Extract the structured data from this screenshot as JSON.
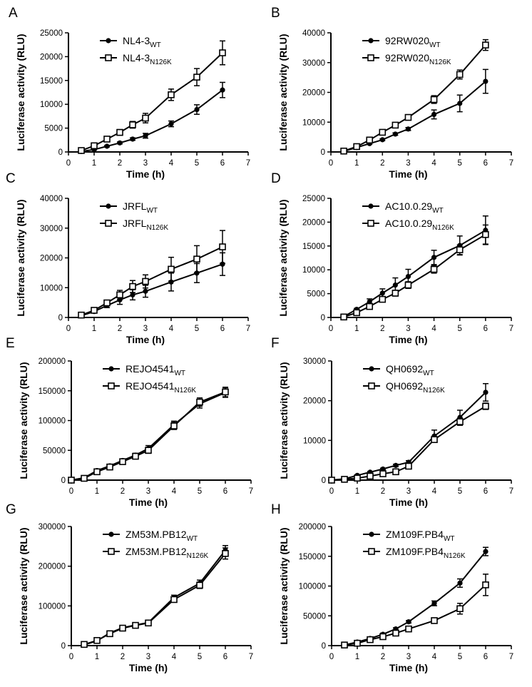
{
  "figure": {
    "x_title": "Time (h)",
    "y_title": "Luciferase activity (RLU)"
  },
  "chart_data": [
    {
      "type": "line",
      "panel": "A",
      "x": [
        0.5,
        1,
        1.5,
        2,
        2.5,
        3,
        4,
        5,
        6
      ],
      "xlim": [
        0,
        7
      ],
      "xticks": [
        0,
        1,
        2,
        3,
        4,
        5,
        6,
        7
      ],
      "ylim": [
        0,
        25000
      ],
      "yticks": [
        0,
        5000,
        10000,
        15000,
        20000,
        25000
      ],
      "xlabel": "Time (h)",
      "ylabel": "Luciferase activity (RLU)",
      "legend_loc": "top-left",
      "series": [
        {
          "name": "NL4-3",
          "sub": "WT",
          "marker": "filled-circle",
          "values": [
            100,
            500,
            1200,
            1900,
            2700,
            3400,
            5900,
            8900,
            13000
          ],
          "errors": [
            50,
            100,
            150,
            200,
            250,
            500,
            600,
            1000,
            1600
          ]
        },
        {
          "name": "NL4-3",
          "sub": "N126K",
          "marker": "open-square",
          "values": [
            300,
            1300,
            2700,
            4100,
            5700,
            7100,
            12000,
            15700,
            20800
          ],
          "errors": [
            100,
            200,
            400,
            600,
            700,
            1000,
            1200,
            1800,
            2500
          ]
        }
      ]
    },
    {
      "type": "line",
      "panel": "B",
      "x": [
        0.5,
        1,
        1.5,
        2,
        2.5,
        3,
        4,
        5,
        6
      ],
      "xlim": [
        0,
        7
      ],
      "xticks": [
        0,
        1,
        2,
        3,
        4,
        5,
        6,
        7
      ],
      "ylim": [
        0,
        40000
      ],
      "yticks": [
        0,
        10000,
        20000,
        30000,
        40000
      ],
      "xlabel": "Time (h)",
      "ylabel": "Luciferase activity (RLU)",
      "legend_loc": "top-left",
      "series": [
        {
          "name": "92RW020",
          "sub": "WT",
          "marker": "filled-circle",
          "values": [
            200,
            1500,
            2800,
            4100,
            6000,
            7700,
            12600,
            16300,
            23700
          ],
          "errors": [
            100,
            200,
            200,
            300,
            400,
            500,
            1500,
            2800,
            4000
          ]
        },
        {
          "name": "92RW020",
          "sub": "N126K",
          "marker": "open-square",
          "values": [
            300,
            1800,
            4000,
            6600,
            9000,
            11600,
            17600,
            26000,
            35900
          ],
          "errors": [
            100,
            300,
            400,
            500,
            600,
            700,
            1300,
            1500,
            1800
          ]
        }
      ]
    },
    {
      "type": "line",
      "panel": "C",
      "x": [
        0.5,
        1,
        1.5,
        2,
        2.5,
        3,
        4,
        5,
        6
      ],
      "xlim": [
        0,
        7
      ],
      "xticks": [
        0,
        1,
        2,
        3,
        4,
        5,
        6,
        7
      ],
      "ylim": [
        0,
        40000
      ],
      "yticks": [
        0,
        10000,
        20000,
        30000,
        40000
      ],
      "xlabel": "Time (h)",
      "ylabel": "Luciferase activity (RLU)",
      "legend_loc": "top-left",
      "series": [
        {
          "name": "JRFL",
          "sub": "WT",
          "marker": "filled-circle",
          "values": [
            600,
            2000,
            4000,
            5900,
            7600,
            8800,
            11900,
            14900,
            17900
          ],
          "errors": [
            200,
            300,
            700,
            1500,
            1700,
            2000,
            3000,
            3200,
            3800
          ]
        },
        {
          "name": "JRFL",
          "sub": "N126K",
          "marker": "open-square",
          "values": [
            800,
            2400,
            4900,
            7600,
            10400,
            12100,
            16200,
            19600,
            23700
          ],
          "errors": [
            200,
            400,
            800,
            1500,
            2000,
            2200,
            4000,
            4500,
            5500
          ]
        }
      ]
    },
    {
      "type": "line",
      "panel": "D",
      "x": [
        0.5,
        1,
        1.5,
        2,
        2.5,
        3,
        4,
        5,
        6
      ],
      "xlim": [
        0,
        7
      ],
      "xticks": [
        0,
        1,
        2,
        3,
        4,
        5,
        6,
        7
      ],
      "ylim": [
        0,
        25000
      ],
      "yticks": [
        0,
        5000,
        10000,
        15000,
        20000,
        25000
      ],
      "xlabel": "Time (h)",
      "ylabel": "Luciferase activity (RLU)",
      "legend_loc": "top-left",
      "series": [
        {
          "name": "AC10.0.29",
          "sub": "WT",
          "marker": "filled-circle",
          "values": [
            200,
            1700,
            3300,
            5100,
            6800,
            8600,
            12600,
            15100,
            18300
          ],
          "errors": [
            100,
            200,
            600,
            900,
            1500,
            1500,
            1500,
            2000,
            3000
          ]
        },
        {
          "name": "AC10.0.29",
          "sub": "N126K",
          "marker": "open-square",
          "values": [
            100,
            1000,
            2300,
            3800,
            5100,
            6800,
            10100,
            14200,
            17400
          ],
          "errors": [
            50,
            200,
            400,
            500,
            600,
            700,
            800,
            1000,
            2000
          ]
        }
      ]
    },
    {
      "type": "line",
      "panel": "E",
      "x": [
        0,
        0.5,
        1,
        1.5,
        2,
        2.5,
        3,
        4,
        5,
        6
      ],
      "xlim": [
        0,
        7
      ],
      "xticks": [
        0,
        1,
        2,
        3,
        4,
        5,
        6,
        7
      ],
      "ylim": [
        0,
        200000
      ],
      "yticks": [
        0,
        50000,
        100000,
        150000,
        200000
      ],
      "xlabel": "Time (h)",
      "ylabel": "Luciferase activity (RLU)",
      "legend_loc": "top-left",
      "series": [
        {
          "name": "REJO4541",
          "sub": "WT",
          "marker": "filled-circle",
          "values": [
            0,
            4000,
            16000,
            24000,
            33000,
            42000,
            53000,
            93000,
            128000,
            147000
          ],
          "errors": [
            0,
            1000,
            2000,
            2000,
            2500,
            3000,
            5000,
            6000,
            7000,
            8000
          ]
        },
        {
          "name": "REJO4541",
          "sub": "N126K",
          "marker": "open-square",
          "values": [
            0,
            3000,
            14000,
            22000,
            31000,
            40000,
            50000,
            91000,
            131000,
            148000
          ],
          "errors": [
            0,
            1000,
            2000,
            2000,
            2500,
            3000,
            5000,
            6000,
            7000,
            8000
          ]
        }
      ]
    },
    {
      "type": "line",
      "panel": "F",
      "x": [
        0,
        0.5,
        1,
        1.5,
        2,
        2.5,
        3,
        4,
        5,
        6
      ],
      "xlim": [
        0,
        7
      ],
      "xticks": [
        0,
        1,
        2,
        3,
        4,
        5,
        6,
        7
      ],
      "ylim": [
        0,
        30000
      ],
      "yticks": [
        0,
        10000,
        20000,
        30000
      ],
      "xlabel": "Time (h)",
      "ylabel": "Luciferase activity (RLU)",
      "legend_loc": "top-left",
      "series": [
        {
          "name": "QH0692",
          "sub": "WT",
          "marker": "filled-circle",
          "values": [
            0,
            300,
            1200,
            2000,
            2800,
            3700,
            4500,
            11100,
            15800,
            22100
          ],
          "errors": [
            0,
            100,
            150,
            200,
            200,
            300,
            400,
            1500,
            1800,
            2200
          ]
        },
        {
          "name": "QH0692",
          "sub": "N126K",
          "marker": "open-square",
          "values": [
            0,
            200,
            500,
            1000,
            1600,
            2100,
            3500,
            10200,
            14700,
            18600
          ],
          "errors": [
            0,
            100,
            100,
            200,
            200,
            300,
            400,
            700,
            900,
            800
          ]
        }
      ]
    },
    {
      "type": "line",
      "panel": "G",
      "x": [
        0.5,
        1,
        1.5,
        2,
        2.5,
        3,
        4,
        5,
        6
      ],
      "xlim": [
        0,
        7
      ],
      "xticks": [
        0,
        1,
        2,
        3,
        4,
        5,
        6,
        7
      ],
      "ylim": [
        0,
        300000
      ],
      "yticks": [
        0,
        100000,
        200000,
        300000
      ],
      "xlabel": "Time (h)",
      "ylabel": "Luciferase activity (RLU)",
      "legend_loc": "top-left",
      "series": [
        {
          "name": "ZM53M.PB12",
          "sub": "WT",
          "marker": "filled-circle",
          "values": [
            2000,
            12000,
            32000,
            45000,
            52000,
            58000,
            121000,
            157000,
            240000
          ],
          "errors": [
            1000,
            2000,
            3000,
            3000,
            3000,
            3000,
            6000,
            8000,
            12000
          ]
        },
        {
          "name": "ZM53M.PB12",
          "sub": "N126K",
          "marker": "open-square",
          "values": [
            3000,
            13000,
            30000,
            44000,
            51000,
            57000,
            116000,
            152000,
            232000
          ],
          "errors": [
            1000,
            2000,
            3000,
            3000,
            3000,
            3000,
            6000,
            8000,
            14000
          ]
        }
      ]
    },
    {
      "type": "line",
      "panel": "H",
      "x": [
        0.5,
        1,
        1.5,
        2,
        2.5,
        3,
        4,
        5,
        6
      ],
      "xlim": [
        0,
        7
      ],
      "xticks": [
        0,
        1,
        2,
        3,
        4,
        5,
        6,
        7
      ],
      "ylim": [
        0,
        200000
      ],
      "yticks": [
        0,
        50000,
        100000,
        150000,
        200000
      ],
      "xlabel": "Time (h)",
      "ylabel": "Luciferase activity (RLU)",
      "legend_loc": "top-left",
      "series": [
        {
          "name": "ZM109F.PB4",
          "sub": "WT",
          "marker": "filled-circle",
          "values": [
            1000,
            6000,
            12000,
            19000,
            28000,
            40000,
            71000,
            105000,
            158000
          ],
          "errors": [
            500,
            1000,
            1500,
            2000,
            2000,
            2000,
            4000,
            7000,
            7000
          ]
        },
        {
          "name": "ZM109F.PB4",
          "sub": "N126K",
          "marker": "open-square",
          "values": [
            1000,
            4000,
            10000,
            15000,
            21000,
            28000,
            42000,
            62000,
            102000
          ],
          "errors": [
            500,
            1000,
            1500,
            2000,
            2000,
            2000,
            4000,
            9000,
            18000
          ]
        }
      ]
    }
  ]
}
